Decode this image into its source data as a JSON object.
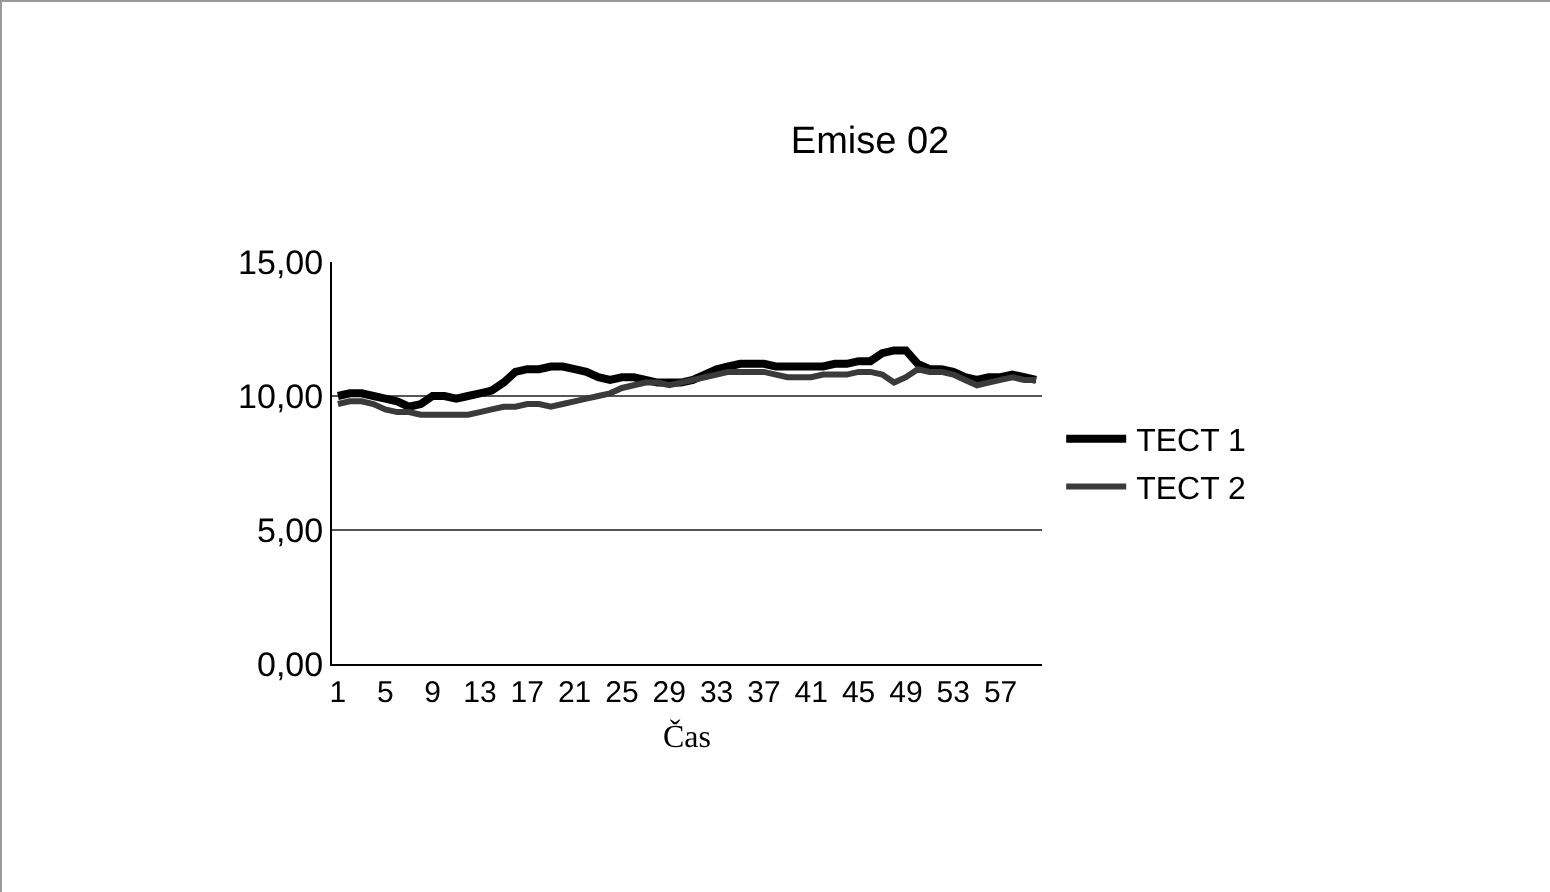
{
  "chart_data": {
    "type": "line",
    "title": "Emise 02",
    "xlabel": "Čas",
    "categories": [
      "1",
      null,
      null,
      null,
      "5",
      null,
      null,
      null,
      "9",
      null,
      null,
      null,
      "13",
      null,
      null,
      null,
      "17",
      null,
      null,
      null,
      "21",
      null,
      null,
      null,
      "25",
      null,
      null,
      null,
      "29",
      null,
      null,
      null,
      "33",
      null,
      null,
      null,
      "37",
      null,
      null,
      null,
      "41",
      null,
      null,
      null,
      "45",
      null,
      null,
      null,
      "49",
      null,
      null,
      null,
      "53",
      null,
      null,
      null,
      "57",
      null,
      null,
      null
    ],
    "series": [
      {
        "name": "TECT 1",
        "color": "#000000",
        "values": [
          10.0,
          10.1,
          10.1,
          10.0,
          9.9,
          9.8,
          9.6,
          9.7,
          10.0,
          10.0,
          9.9,
          10.0,
          10.1,
          10.2,
          10.5,
          10.9,
          11.0,
          11.0,
          11.1,
          11.1,
          11.0,
          10.9,
          10.7,
          10.6,
          10.7,
          10.7,
          10.6,
          10.5,
          10.5,
          10.5,
          10.6,
          10.8,
          11.0,
          11.1,
          11.2,
          11.2,
          11.2,
          11.1,
          11.1,
          11.1,
          11.1,
          11.1,
          11.2,
          11.2,
          11.3,
          11.3,
          11.6,
          11.7,
          11.7,
          11.2,
          11.0,
          11.0,
          10.9,
          10.7,
          10.6,
          10.7,
          10.7,
          10.8,
          10.7,
          10.6
        ]
      },
      {
        "name": "TECT 2",
        "color": "#3a3a3a",
        "values": [
          9.7,
          9.8,
          9.8,
          9.7,
          9.5,
          9.4,
          9.4,
          9.3,
          9.3,
          9.3,
          9.3,
          9.3,
          9.4,
          9.5,
          9.6,
          9.6,
          9.7,
          9.7,
          9.6,
          9.7,
          9.8,
          9.9,
          10.0,
          10.1,
          10.3,
          10.4,
          10.5,
          10.5,
          10.4,
          10.5,
          10.6,
          10.7,
          10.8,
          10.9,
          10.9,
          10.9,
          10.9,
          10.8,
          10.7,
          10.7,
          10.7,
          10.8,
          10.8,
          10.8,
          10.9,
          10.9,
          10.8,
          10.5,
          10.7,
          11.0,
          10.9,
          10.9,
          10.8,
          10.6,
          10.4,
          10.5,
          10.6,
          10.7,
          10.6,
          10.6
        ]
      }
    ],
    "ylim": [
      0,
      15
    ],
    "yticks": [
      {
        "value": 0,
        "label": "0,00"
      },
      {
        "value": 5,
        "label": "5,00"
      },
      {
        "value": 10,
        "label": "10,00"
      },
      {
        "value": 15,
        "label": "15,00"
      }
    ],
    "grid": "y",
    "legend": "right",
    "marker": "none",
    "line_style": "solid"
  }
}
